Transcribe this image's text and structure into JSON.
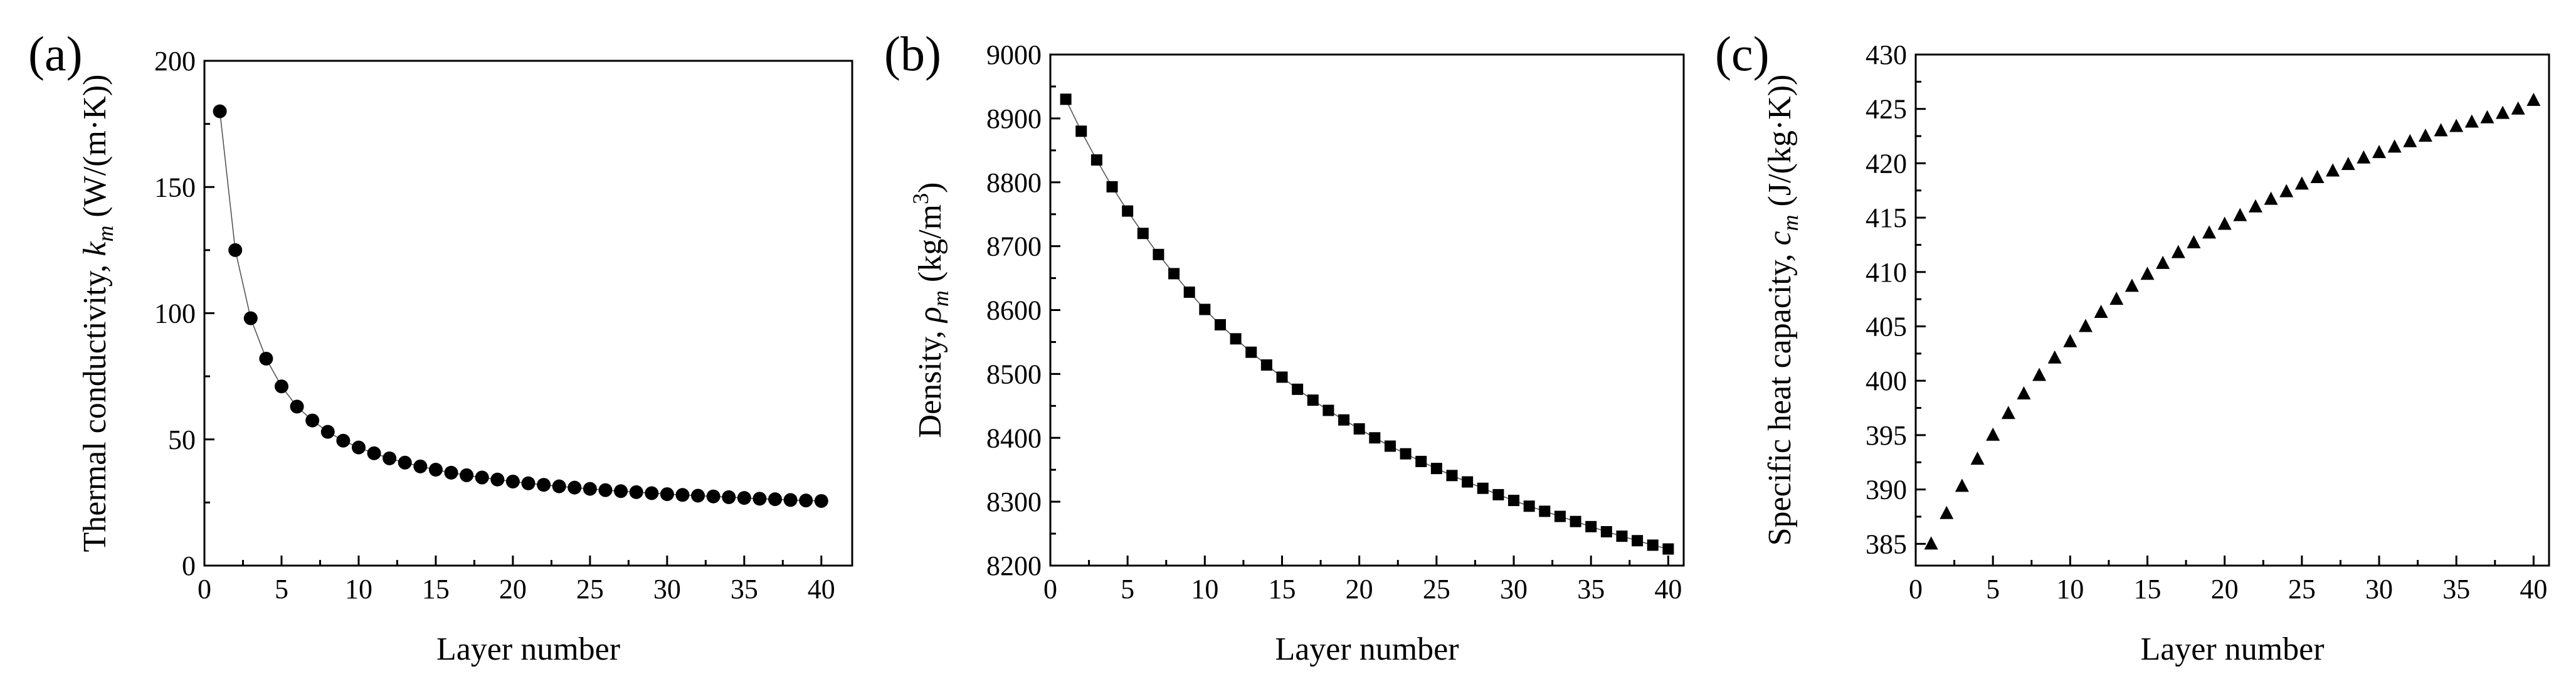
{
  "chart_data": [
    {
      "type": "scatter",
      "panel_label": "(a)",
      "xlabel": "Layer number",
      "ylabel": "Thermal conductivity, k_m (W/(m·K))",
      "ylabel_parts": {
        "pre": "Thermal conductivity, ",
        "sym": "k",
        "sub": "m",
        "post": "  (W/(m·K))"
      },
      "xlim": [
        0,
        42
      ],
      "ylim": [
        0,
        200
      ],
      "xticks": [
        0,
        5,
        10,
        15,
        20,
        25,
        30,
        35,
        40
      ],
      "yticks": [
        0,
        50,
        100,
        150,
        200
      ],
      "marker": "circle",
      "connect": true,
      "series": [
        {
          "x": [
            1,
            2,
            3,
            4,
            5,
            6,
            7,
            8,
            9,
            10,
            11,
            12,
            13,
            14,
            15,
            16,
            17,
            18,
            19,
            20,
            21,
            22,
            23,
            24,
            25,
            26,
            27,
            28,
            29,
            30,
            31,
            32,
            33,
            34,
            35,
            36,
            37,
            38,
            39,
            40
          ],
          "y": [
            180,
            125,
            98,
            82,
            71,
            63,
            57.5,
            53,
            49.5,
            46.8,
            44.5,
            42.5,
            40.8,
            39.3,
            38,
            36.8,
            35.8,
            34.9,
            34.1,
            33.3,
            32.6,
            32,
            31.4,
            30.9,
            30.4,
            29.9,
            29.5,
            29.1,
            28.7,
            28.3,
            28,
            27.7,
            27.4,
            27.1,
            26.8,
            26.5,
            26.3,
            26,
            25.8,
            25.6
          ]
        }
      ]
    },
    {
      "type": "scatter",
      "panel_label": "(b)",
      "xlabel": "Layer number",
      "ylabel": "Density, ρ_m (kg/m^3)",
      "ylabel_parts": {
        "pre": "Density, ",
        "sym": "ρ",
        "sub": "m",
        "post": "  (kg/m",
        "sup": "3",
        "post2": ")"
      },
      "xlim": [
        0,
        41
      ],
      "ylim": [
        8200,
        9000
      ],
      "xticks": [
        0,
        5,
        10,
        15,
        20,
        25,
        30,
        35,
        40
      ],
      "yticks": [
        8200,
        8300,
        8400,
        8500,
        8600,
        8700,
        8800,
        8900,
        9000
      ],
      "marker": "square",
      "connect": true,
      "series": [
        {
          "x": [
            1,
            2,
            3,
            4,
            5,
            6,
            7,
            8,
            9,
            10,
            11,
            12,
            13,
            14,
            15,
            16,
            17,
            18,
            19,
            20,
            21,
            22,
            23,
            24,
            25,
            26,
            27,
            28,
            29,
            30,
            31,
            32,
            33,
            34,
            35,
            36,
            37,
            38,
            39,
            40
          ],
          "y": [
            8930,
            8880,
            8835,
            8793,
            8755,
            8720,
            8687,
            8657,
            8628,
            8601,
            8577,
            8555,
            8534,
            8514,
            8495,
            8476,
            8459,
            8443,
            8428,
            8414,
            8400,
            8387,
            8375,
            8363,
            8352,
            8341,
            8331,
            8321,
            8311,
            8302,
            8293,
            8285,
            8277,
            8269,
            8261,
            8253,
            8246,
            8239,
            8232,
            8226
          ]
        }
      ]
    },
    {
      "type": "scatter",
      "panel_label": "(c)",
      "xlabel": "Layer number",
      "ylabel": "Specific heat capacity, c_m (J/(kg·K))",
      "ylabel_parts": {
        "pre": "Specific heat capacity, ",
        "sym": "c",
        "sub": "m",
        "post": "  (J/(kg·K))"
      },
      "xlim": [
        0,
        41
      ],
      "ylim": [
        383,
        430
      ],
      "xticks": [
        0,
        5,
        10,
        15,
        20,
        25,
        30,
        35,
        40
      ],
      "yticks": [
        385,
        390,
        395,
        400,
        405,
        410,
        415,
        420,
        425,
        430
      ],
      "marker": "triangle",
      "connect": false,
      "series": [
        {
          "x": [
            1,
            2,
            3,
            4,
            5,
            6,
            7,
            8,
            9,
            10,
            11,
            12,
            13,
            14,
            15,
            16,
            17,
            18,
            19,
            20,
            21,
            22,
            23,
            24,
            25,
            26,
            27,
            28,
            29,
            30,
            31,
            32,
            33,
            34,
            35,
            36,
            37,
            38,
            39,
            40
          ],
          "y": [
            385,
            387.8,
            390.3,
            392.8,
            395,
            397,
            398.8,
            400.5,
            402.1,
            403.6,
            405,
            406.3,
            407.5,
            408.7,
            409.8,
            410.8,
            411.8,
            412.7,
            413.6,
            414.4,
            415.2,
            416,
            416.7,
            417.4,
            418.1,
            418.7,
            419.3,
            419.9,
            420.5,
            421,
            421.5,
            422,
            422.5,
            423,
            423.4,
            423.8,
            424.2,
            424.6,
            425,
            425.8
          ]
        }
      ]
    }
  ]
}
